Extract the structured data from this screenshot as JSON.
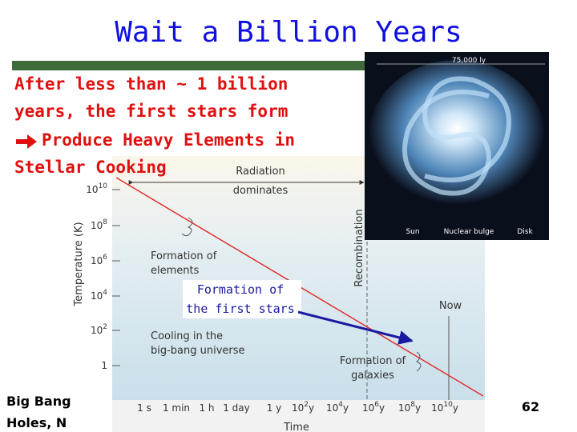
{
  "title": "Wait a Billion Years",
  "body": {
    "lines": [
      "After less than ~ 1 billion",
      "years, the first stars form",
      "Produce Heavy Elements in",
      "Stellar Cooking"
    ]
  },
  "figure": {
    "y_axis_label": "Temperature (K)",
    "x_axis_label": "Time",
    "y_ticks": [
      {
        "base": "10",
        "exp": "10"
      },
      {
        "base": "10",
        "exp": "8"
      },
      {
        "base": "10",
        "exp": "6"
      },
      {
        "base": "10",
        "exp": "4"
      },
      {
        "base": "10",
        "exp": "2"
      },
      "1"
    ],
    "x_ticks": [
      "1 s",
      "1 min",
      "1 h",
      "1 day",
      "1 y",
      {
        "base": "10",
        "exp": "2",
        "unit": "y"
      },
      {
        "base": "10",
        "exp": "4",
        "unit": "y"
      },
      {
        "base": "10",
        "exp": "6",
        "unit": "y"
      },
      {
        "base": "10",
        "exp": "8",
        "unit": "y"
      },
      {
        "base": "10",
        "exp": "10",
        "unit": "y"
      }
    ],
    "radiation": [
      "Radiation",
      "dominates"
    ],
    "elements": [
      "Formation of",
      "elements"
    ],
    "cooling": [
      "Cooling in the",
      "big-bang universe"
    ],
    "galaxies": [
      "Formation of",
      "galaxies"
    ],
    "recombination": "Recombination",
    "now": "Now"
  },
  "galaxy": {
    "scale": "75,000 ly",
    "labels": [
      "Sun",
      "Nuclear bulge",
      "Disk"
    ]
  },
  "callout": [
    "Formation of",
    "the first stars"
  ],
  "footer": {
    "lines": [
      "Big Bang",
      "Holes, N"
    ],
    "page": "62"
  }
}
